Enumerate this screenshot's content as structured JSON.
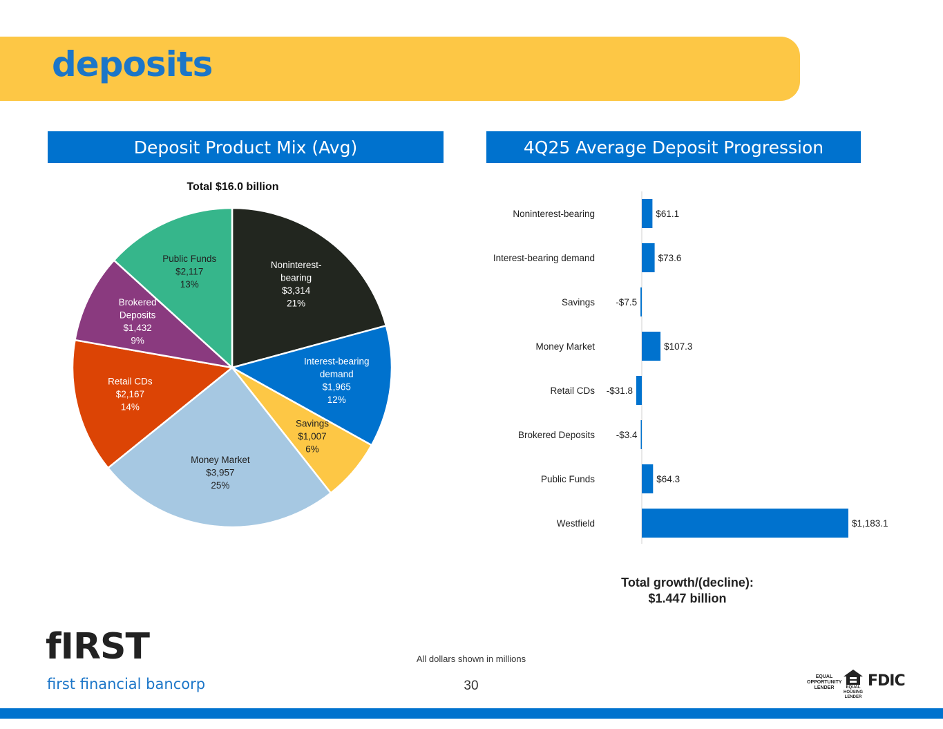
{
  "page": {
    "title": "deposits",
    "footnote": "All dollars shown in millions",
    "page_number": "30",
    "logo_mark": "fIRST",
    "logo_text": "first financial bancorp",
    "equal_opportunity_lender": "EQUAL OPPORTUNITY LENDER",
    "equal_housing_lender": "EQUAL HOUSING LENDER",
    "fdic": "FDIC"
  },
  "colors": {
    "banner": "#FDC745",
    "accent_blue": "#0072CE",
    "title_blue": "#1C76C8"
  },
  "chart_data": [
    {
      "type": "pie",
      "header": "Deposit Product Mix (Avg)",
      "title": "Total $16.0 billion",
      "slices": [
        {
          "label": "Noninterest-bearing",
          "label_lines": [
            "Noninterest-",
            "bearing"
          ],
          "value": 3314,
          "value_label": "$3,314",
          "percent": "21%",
          "color": "#22261F",
          "text_color": "#ffffff"
        },
        {
          "label": "Interest-bearing demand",
          "label_lines": [
            "Interest-bearing",
            "demand"
          ],
          "value": 1965,
          "value_label": "$1,965",
          "percent": "12%",
          "color": "#0072CE",
          "text_color": "#ffffff"
        },
        {
          "label": "Savings",
          "label_lines": [
            "Savings"
          ],
          "value": 1007,
          "value_label": "$1,007",
          "percent": "6%",
          "color": "#FDC745",
          "text_color": "#222222"
        },
        {
          "label": "Money Market",
          "label_lines": [
            "Money Market"
          ],
          "value": 3957,
          "value_label": "$3,957",
          "percent": "25%",
          "color": "#A6C8E2",
          "text_color": "#222222"
        },
        {
          "label": "Retail CDs",
          "label_lines": [
            "Retail CDs"
          ],
          "value": 2167,
          "value_label": "$2,167",
          "percent": "14%",
          "color": "#DC4405",
          "text_color": "#ffffff"
        },
        {
          "label": "Brokered Deposits",
          "label_lines": [
            "Brokered",
            "Deposits"
          ],
          "value": 1432,
          "value_label": "$1,432",
          "percent": "9%",
          "color": "#8A3A7F",
          "text_color": "#ffffff"
        },
        {
          "label": "Public Funds",
          "label_lines": [
            "Public Funds"
          ],
          "value": 2117,
          "value_label": "$2,117",
          "percent": "13%",
          "color": "#36B68B",
          "text_color": "#222222"
        }
      ]
    },
    {
      "type": "bar",
      "orientation": "horizontal",
      "header": "4Q25 Average Deposit Progression",
      "categories": [
        "Noninterest-bearing",
        "Interest-bearing demand",
        "Savings",
        "Money Market",
        "Retail CDs",
        "Brokered Deposits",
        "Public Funds",
        "Westfield"
      ],
      "values": [
        61.1,
        73.6,
        -7.5,
        107.3,
        -31.8,
        -3.4,
        64.3,
        1183.1
      ],
      "value_labels": [
        "$61.1",
        "$73.6",
        "-$7.5",
        "$107.3",
        "-$31.8",
        "-$3.4",
        "$64.3",
        "$1,183.1"
      ],
      "bar_color": "#0072CE",
      "total_label": "Total growth/(decline):",
      "total_value": "$1.447 billion"
    }
  ]
}
